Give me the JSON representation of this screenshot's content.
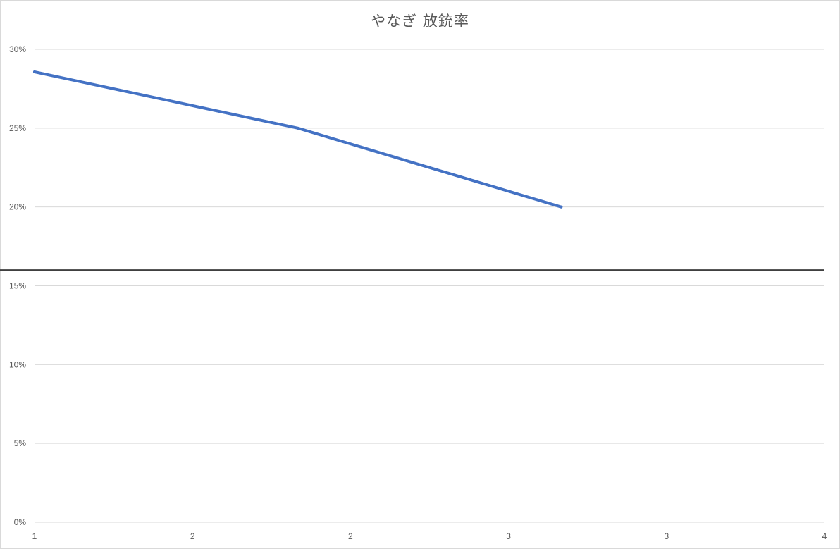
{
  "chart_data": {
    "type": "line",
    "title": "やなぎ 放銃率",
    "xlabel": "",
    "ylabel": "",
    "x_tick_labels": [
      "1",
      "2",
      "2",
      "3",
      "3",
      "4"
    ],
    "y_tick_labels": [
      "0%",
      "5%",
      "10%",
      "15%",
      "20%",
      "25%",
      "30%"
    ],
    "ylim": [
      0,
      0.3
    ],
    "xlim": [
      1,
      4
    ],
    "y_format": "percent",
    "grid": true,
    "legend": "none",
    "series": [
      {
        "x": [
          1,
          2,
          3
        ],
        "values": [
          0.2857,
          0.25,
          0.2
        ],
        "color": "#4472c4"
      }
    ],
    "reference_line": {
      "y": 0.16,
      "color": "#404040"
    },
    "colors": {
      "gridline": "#d9d9d9",
      "axis_text": "#595959"
    }
  }
}
